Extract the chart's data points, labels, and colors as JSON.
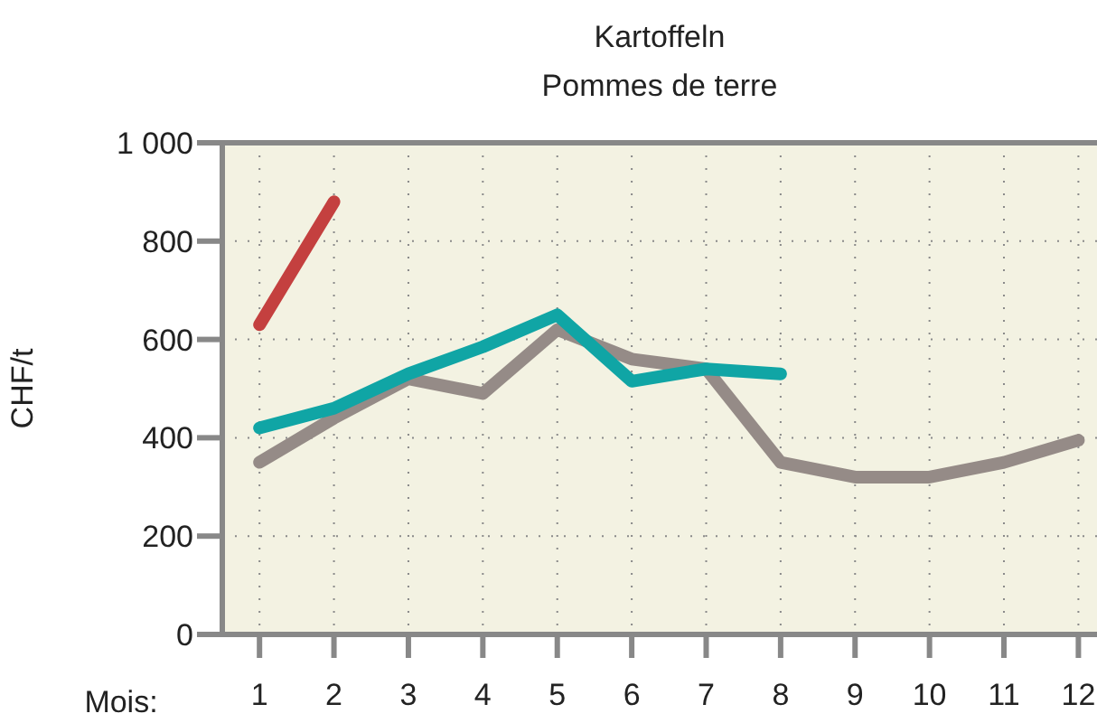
{
  "chart_data": {
    "type": "line",
    "title": "Kartoffeln",
    "subtitle": "Pommes de terre",
    "xlabel": "Mois:",
    "ylabel": "CHF/t",
    "x": [
      1,
      2,
      3,
      4,
      5,
      6,
      7,
      8,
      9,
      10,
      11,
      12
    ],
    "series": [
      {
        "color": "#958b87",
        "values": [
          350,
          440,
          520,
          490,
          620,
          560,
          540,
          350,
          320,
          320,
          350,
          395
        ]
      },
      {
        "color": "#10a5a5",
        "values": [
          420,
          460,
          530,
          585,
          650,
          515,
          540,
          530,
          null,
          null,
          null,
          null
        ]
      },
      {
        "color": "#c4403f",
        "values": [
          630,
          880,
          null,
          null,
          null,
          null,
          null,
          null,
          null,
          null,
          null,
          null
        ]
      }
    ],
    "xlim": [
      0.5,
      12.25
    ],
    "xticks": [
      1,
      2,
      3,
      4,
      5,
      6,
      7,
      8,
      9,
      10,
      11,
      12
    ],
    "ylim": [
      0,
      1000
    ],
    "yticks": [
      0,
      200,
      400,
      600,
      800,
      {
        "value": 1000,
        "label": "1 000"
      }
    ],
    "grid": true,
    "marker": "none",
    "line_style": "solid"
  }
}
